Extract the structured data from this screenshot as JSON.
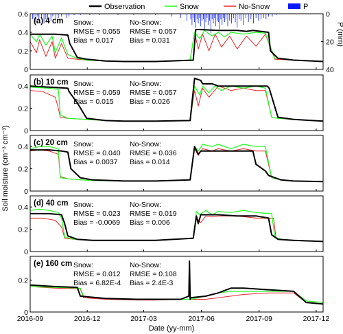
{
  "legend": {
    "items": [
      {
        "label": "Observation",
        "color": "#000000",
        "kind": "line"
      },
      {
        "label": "Snow",
        "color": "#1aff1a",
        "kind": "line"
      },
      {
        "label": "No-Snow",
        "color": "#e8262a",
        "kind": "line"
      },
      {
        "label": "P",
        "color": "#0a1aff",
        "kind": "bar"
      }
    ]
  },
  "ylabel": "Soil moisture (cm⁻³ cm⁻³)",
  "xlabel": "Date (yy-mm)",
  "xticks": [
    "2016-09",
    "2016-12",
    "2017-03",
    "2017-06",
    "2017-09",
    "2017-12"
  ],
  "precip_axis": {
    "label": "P (mm)",
    "ticks": [
      "0",
      "20",
      "40"
    ],
    "ylim": [
      40,
      0
    ]
  },
  "colors": {
    "observation": "#000000",
    "snow": "#1aff1a",
    "nosnow": "#e8262a",
    "precip": "#0a1aff"
  },
  "chart_data": [
    {
      "type": "line",
      "panel_label": "(a) 4 cm",
      "yticks": [
        "0",
        "0.2",
        "0.4",
        "0.6"
      ],
      "ylim": [
        0,
        0.6
      ],
      "xlim_days": [
        0,
        467
      ],
      "stats_snow": [
        "Snow:",
        "RMSE = 0.055",
        "Bias = 0.017"
      ],
      "stats_nosnow": [
        "No-Snow:",
        "RMSE = 0.057",
        "Bias = 0.031"
      ],
      "series": [
        {
          "name": "Observation",
          "x": [
            0,
            15,
            40,
            60,
            63,
            75,
            90,
            120,
            150,
            200,
            260,
            264,
            270,
            300,
            330,
            345,
            355,
            380,
            383,
            395,
            420,
            450,
            467
          ],
          "y": [
            0.38,
            0.38,
            0.38,
            0.37,
            0.28,
            0.13,
            0.11,
            0.09,
            0.085,
            0.085,
            0.1,
            0.43,
            0.43,
            0.42,
            0.42,
            0.41,
            0.42,
            0.4,
            0.2,
            0.12,
            0.1,
            0.09,
            0.085
          ]
        },
        {
          "name": "Snow",
          "x": [
            0,
            10,
            15,
            25,
            35,
            40,
            50,
            60,
            75,
            90,
            120,
            150,
            200,
            255,
            262,
            270,
            278,
            290,
            300,
            310,
            320,
            340,
            360,
            375,
            390,
            420,
            467
          ],
          "y": [
            0.38,
            0.3,
            0.38,
            0.26,
            0.36,
            0.18,
            0.34,
            0.16,
            0.12,
            0.1,
            0.09,
            0.085,
            0.085,
            0.1,
            0.4,
            0.33,
            0.42,
            0.36,
            0.4,
            0.35,
            0.4,
            0.38,
            0.4,
            0.39,
            0.12,
            0.1,
            0.085
          ]
        },
        {
          "name": "No-Snow",
          "x": [
            0,
            10,
            15,
            25,
            35,
            40,
            50,
            60,
            75,
            90,
            120,
            150,
            200,
            255,
            262,
            268,
            275,
            285,
            295,
            305,
            318,
            330,
            345,
            360,
            375,
            390,
            420,
            467
          ],
          "y": [
            0.3,
            0.18,
            0.32,
            0.14,
            0.3,
            0.12,
            0.28,
            0.12,
            0.11,
            0.1,
            0.09,
            0.085,
            0.085,
            0.1,
            0.4,
            0.22,
            0.38,
            0.2,
            0.38,
            0.24,
            0.36,
            0.22,
            0.36,
            0.25,
            0.38,
            0.11,
            0.1,
            0.085
          ]
        }
      ]
    },
    {
      "type": "line",
      "panel_label": "(b) 10 cm",
      "yticks": [
        "0",
        "0.2",
        "0.4"
      ],
      "ylim": [
        0,
        0.5
      ],
      "xlim_days": [
        0,
        467
      ],
      "stats_snow": [
        "Snow:",
        "RMSE = 0.059",
        "Bias = 0.015"
      ],
      "stats_nosnow": [
        "No-Snow:",
        "RMSE = 0.057",
        "Bias = 0.026"
      ],
      "series": [
        {
          "name": "Observation",
          "x": [
            0,
            30,
            60,
            62,
            75,
            90,
            120,
            150,
            200,
            255,
            262,
            272,
            275,
            290,
            300,
            320,
            350,
            378,
            381,
            395,
            420,
            450,
            467
          ],
          "y": [
            0.4,
            0.39,
            0.38,
            0.35,
            0.25,
            0.11,
            0.09,
            0.085,
            0.085,
            0.09,
            0.47,
            0.45,
            0.42,
            0.42,
            0.4,
            0.4,
            0.4,
            0.4,
            0.38,
            0.12,
            0.1,
            0.09,
            0.085
          ]
        },
        {
          "name": "Snow",
          "x": [
            0,
            30,
            45,
            48,
            60,
            90,
            120,
            150,
            200,
            255,
            262,
            270,
            275,
            285,
            295,
            305,
            320,
            340,
            360,
            375,
            385,
            395,
            420,
            467
          ],
          "y": [
            0.39,
            0.38,
            0.37,
            0.14,
            0.11,
            0.1,
            0.09,
            0.085,
            0.085,
            0.09,
            0.4,
            0.32,
            0.4,
            0.34,
            0.4,
            0.36,
            0.4,
            0.38,
            0.4,
            0.38,
            0.12,
            0.11,
            0.1,
            0.085
          ]
        },
        {
          "name": "No-Snow",
          "x": [
            0,
            20,
            40,
            45,
            48,
            60,
            90,
            120,
            150,
            200,
            255,
            262,
            268,
            275,
            285,
            300,
            320,
            340,
            360,
            375,
            385,
            395,
            420,
            467
          ],
          "y": [
            0.36,
            0.35,
            0.3,
            0.2,
            0.12,
            0.11,
            0.1,
            0.09,
            0.085,
            0.085,
            0.09,
            0.36,
            0.22,
            0.38,
            0.3,
            0.4,
            0.36,
            0.38,
            0.36,
            0.36,
            0.12,
            0.11,
            0.1,
            0.085
          ]
        }
      ]
    },
    {
      "type": "line",
      "panel_label": "(c) 20 cm",
      "yticks": [
        "0",
        "0.2",
        "0.4"
      ],
      "ylim": [
        0,
        0.5
      ],
      "xlim_days": [
        0,
        467
      ],
      "stats_snow": [
        "Snow:",
        "RMSE = 0.040",
        "Bias = 0.0037"
      ],
      "stats_nosnow": [
        "No-Snow:",
        "RMSE = 0.036",
        "Bias = 0.014"
      ],
      "series": [
        {
          "name": "Observation",
          "x": [
            0,
            30,
            50,
            60,
            65,
            80,
            100,
            150,
            200,
            255,
            262,
            268,
            272,
            290,
            300,
            330,
            355,
            360,
            375,
            380,
            400,
            420,
            467
          ],
          "y": [
            0.37,
            0.37,
            0.36,
            0.35,
            0.2,
            0.12,
            0.1,
            0.09,
            0.09,
            0.1,
            0.4,
            0.33,
            0.36,
            0.36,
            0.36,
            0.36,
            0.36,
            0.24,
            0.18,
            0.14,
            0.1,
            0.09,
            0.085
          ]
        },
        {
          "name": "Snow",
          "x": [
            0,
            15,
            30,
            45,
            48,
            60,
            80,
            100,
            150,
            200,
            255,
            262,
            268,
            275,
            290,
            300,
            320,
            340,
            360,
            375,
            385,
            400,
            420,
            467
          ],
          "y": [
            0.38,
            0.4,
            0.4,
            0.38,
            0.12,
            0.11,
            0.1,
            0.095,
            0.09,
            0.09,
            0.1,
            0.4,
            0.36,
            0.42,
            0.4,
            0.42,
            0.38,
            0.42,
            0.4,
            0.4,
            0.12,
            0.1,
            0.09,
            0.085
          ]
        },
        {
          "name": "No-Snow",
          "x": [
            0,
            15,
            30,
            45,
            48,
            60,
            80,
            100,
            150,
            200,
            255,
            262,
            268,
            275,
            290,
            300,
            320,
            340,
            360,
            375,
            385,
            400,
            420,
            467
          ],
          "y": [
            0.36,
            0.37,
            0.36,
            0.33,
            0.13,
            0.11,
            0.1,
            0.095,
            0.09,
            0.09,
            0.1,
            0.38,
            0.32,
            0.38,
            0.36,
            0.38,
            0.36,
            0.38,
            0.36,
            0.36,
            0.12,
            0.1,
            0.09,
            0.085
          ]
        }
      ]
    },
    {
      "type": "line",
      "panel_label": "(d) 40 cm",
      "yticks": [
        "0",
        "0.2",
        "0.4"
      ],
      "ylim": [
        0,
        0.5
      ],
      "xlim_days": [
        0,
        467
      ],
      "stats_snow": [
        "Snow:",
        "RMSE = 0.023",
        "Bias = -0.0069"
      ],
      "stats_nosnow": [
        "No-Snow:",
        "RMSE = 0.019",
        "Bias = 0.006"
      ],
      "series": [
        {
          "name": "Observation",
          "x": [
            0,
            30,
            50,
            55,
            60,
            75,
            100,
            150,
            200,
            260,
            265,
            268,
            272,
            290,
            300,
            330,
            360,
            380,
            385,
            395,
            420,
            467
          ],
          "y": [
            0.34,
            0.34,
            0.33,
            0.25,
            0.14,
            0.11,
            0.1,
            0.1,
            0.1,
            0.12,
            0.32,
            0.25,
            0.33,
            0.33,
            0.33,
            0.32,
            0.32,
            0.3,
            0.15,
            0.11,
            0.1,
            0.09
          ]
        },
        {
          "name": "Snow",
          "x": [
            0,
            15,
            30,
            45,
            50,
            55,
            70,
            100,
            150,
            200,
            260,
            265,
            270,
            280,
            290,
            300,
            320,
            340,
            360,
            385,
            390,
            400,
            420,
            467
          ],
          "y": [
            0.37,
            0.38,
            0.37,
            0.35,
            0.3,
            0.13,
            0.11,
            0.1,
            0.1,
            0.1,
            0.12,
            0.36,
            0.33,
            0.37,
            0.33,
            0.36,
            0.35,
            0.37,
            0.35,
            0.34,
            0.13,
            0.11,
            0.1,
            0.09
          ]
        },
        {
          "name": "No-Snow",
          "x": [
            0,
            20,
            40,
            50,
            55,
            70,
            100,
            150,
            200,
            260,
            265,
            272,
            280,
            290,
            300,
            330,
            360,
            388,
            392,
            400,
            420,
            467
          ],
          "y": [
            0.3,
            0.3,
            0.28,
            0.22,
            0.12,
            0.11,
            0.1,
            0.1,
            0.1,
            0.12,
            0.3,
            0.26,
            0.32,
            0.31,
            0.32,
            0.32,
            0.3,
            0.3,
            0.12,
            0.11,
            0.1,
            0.09
          ]
        }
      ]
    },
    {
      "type": "line",
      "panel_label": "(e) 160 cm",
      "yticks": [
        "0",
        "0.2",
        "0.4"
      ],
      "ylim": [
        0,
        0.35
      ],
      "xlim_days": [
        0,
        467
      ],
      "stats_snow": [
        "Snow:",
        "RMSE = 0.012",
        "Bias = 6.82E-4"
      ],
      "stats_nosnow": [
        "No-Snow:",
        "RMSE = 0.108",
        "Bias = 2.4E-3"
      ],
      "series": [
        {
          "name": "Observation",
          "x": [
            0,
            40,
            75,
            80,
            120,
            170,
            200,
            240,
            253,
            254,
            255,
            256,
            280,
            300,
            320,
            340,
            380,
            420,
            440,
            467
          ],
          "y": [
            0.17,
            0.16,
            0.155,
            0.1,
            0.085,
            0.08,
            0.08,
            0.08,
            0.1,
            0.32,
            0.08,
            0.09,
            0.1,
            0.12,
            0.15,
            0.15,
            0.14,
            0.13,
            0.06,
            0.05
          ]
        },
        {
          "name": "Snow",
          "x": [
            0,
            40,
            80,
            85,
            120,
            170,
            200,
            240,
            255,
            280,
            300,
            320,
            340,
            380,
            420,
            440,
            467
          ],
          "y": [
            0.16,
            0.155,
            0.15,
            0.1,
            0.085,
            0.08,
            0.08,
            0.08,
            0.08,
            0.1,
            0.12,
            0.13,
            0.13,
            0.13,
            0.13,
            0.07,
            0.06
          ]
        },
        {
          "name": "No-Snow",
          "x": [
            0,
            40,
            80,
            85,
            120,
            170,
            200,
            240,
            255,
            280,
            300,
            320,
            340,
            380,
            420,
            440,
            467
          ],
          "y": [
            0.16,
            0.15,
            0.145,
            0.09,
            0.08,
            0.075,
            0.075,
            0.08,
            0.08,
            0.08,
            0.09,
            0.1,
            0.11,
            0.12,
            0.12,
            0.06,
            0.05
          ]
        }
      ]
    }
  ],
  "precip_data": {
    "type": "bar",
    "x_days": [
      4,
      6,
      9,
      12,
      14,
      18,
      22,
      25,
      28,
      33,
      36,
      41,
      45,
      50,
      58,
      62,
      70,
      80,
      95,
      110,
      140,
      165,
      200,
      225,
      240,
      250,
      256,
      258,
      260,
      262,
      264,
      266,
      268,
      270,
      272,
      274,
      276,
      278,
      280,
      282,
      284,
      286,
      288,
      290,
      292,
      294,
      296,
      298,
      300,
      302,
      304,
      306,
      308,
      310,
      312,
      315,
      318,
      321,
      324,
      327,
      330,
      333,
      336,
      340,
      344,
      348,
      352,
      356,
      360,
      364,
      368,
      372,
      376,
      380,
      386,
      392
    ],
    "values": [
      4,
      3,
      6,
      2,
      4,
      3,
      7,
      4,
      3,
      5,
      2,
      4,
      3,
      2,
      3,
      2,
      1,
      1,
      1,
      1,
      1,
      1,
      1,
      2,
      3,
      5,
      4,
      8,
      3,
      6,
      10,
      4,
      7,
      3,
      9,
      5,
      4,
      12,
      6,
      3,
      8,
      5,
      14,
      4,
      7,
      3,
      9,
      5,
      6,
      11,
      4,
      8,
      3,
      6,
      4,
      9,
      5,
      7,
      3,
      6,
      10,
      4,
      5,
      8,
      3,
      6,
      4,
      7,
      3,
      5,
      4,
      3,
      4,
      2,
      2,
      1
    ]
  }
}
